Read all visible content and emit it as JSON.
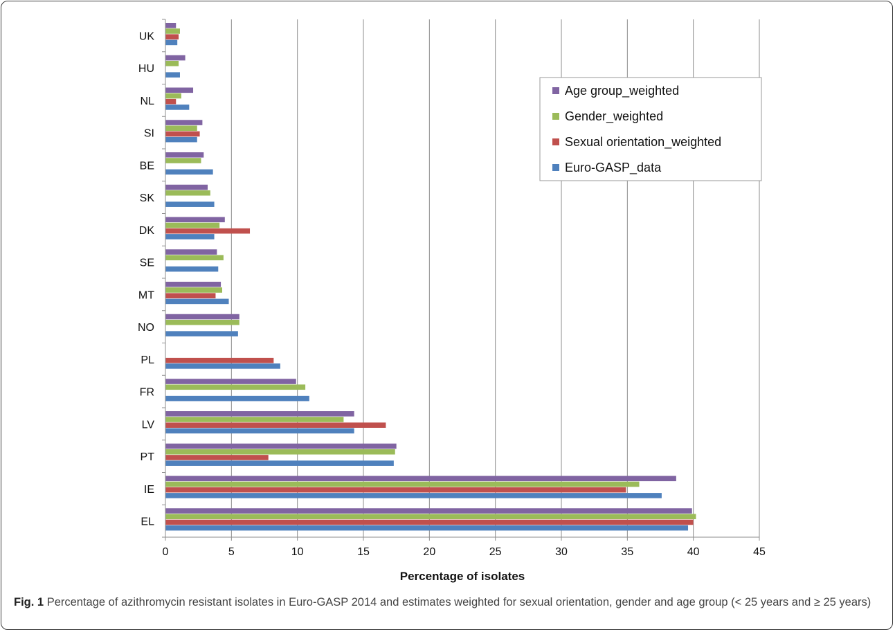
{
  "caption": {
    "label": "Fig. 1",
    "text": "Percentage of azithromycin resistant isolates in Euro-GASP 2014 and estimates weighted for sexual orientation, gender and age group (< 25 years and ≥ 25 years)"
  },
  "chart_data": {
    "type": "bar",
    "orientation": "horizontal",
    "xlabel": "Percentage of isolates",
    "ylabel": "",
    "xlim": [
      0,
      45
    ],
    "xticks": [
      0,
      5,
      10,
      15,
      20,
      25,
      30,
      35,
      40,
      45
    ],
    "grid": true,
    "legend_position": "top-right",
    "categories": [
      "UK",
      "HU",
      "NL",
      "SI",
      "BE",
      "SK",
      "DK",
      "SE",
      "MT",
      "NO",
      "PL",
      "FR",
      "LV",
      "PT",
      "IE",
      "EL"
    ],
    "series": [
      {
        "name": "Age group_weighted",
        "color": "#8064a2",
        "values": [
          0.8,
          1.5,
          2.1,
          2.8,
          2.9,
          3.2,
          4.5,
          3.9,
          4.2,
          5.6,
          null,
          9.9,
          14.3,
          17.5,
          38.7,
          39.9
        ]
      },
      {
        "name": "Gender_weighted",
        "color": "#9bbb59",
        "values": [
          1.1,
          1.0,
          1.2,
          2.4,
          2.7,
          3.4,
          4.1,
          4.4,
          4.3,
          5.6,
          null,
          10.6,
          13.5,
          17.4,
          35.9,
          40.2
        ]
      },
      {
        "name": "Sexual orientation_weighted",
        "color": "#c0504d",
        "values": [
          1.0,
          null,
          0.8,
          2.6,
          null,
          null,
          6.4,
          null,
          3.8,
          null,
          8.2,
          null,
          16.7,
          7.8,
          34.9,
          40.0
        ]
      },
      {
        "name": "Euro-GASP_data",
        "color": "#4f81bd",
        "values": [
          0.9,
          1.1,
          1.8,
          2.4,
          3.6,
          3.7,
          3.7,
          4.0,
          4.8,
          5.5,
          8.7,
          10.9,
          14.3,
          17.3,
          37.6,
          39.6
        ]
      }
    ]
  }
}
